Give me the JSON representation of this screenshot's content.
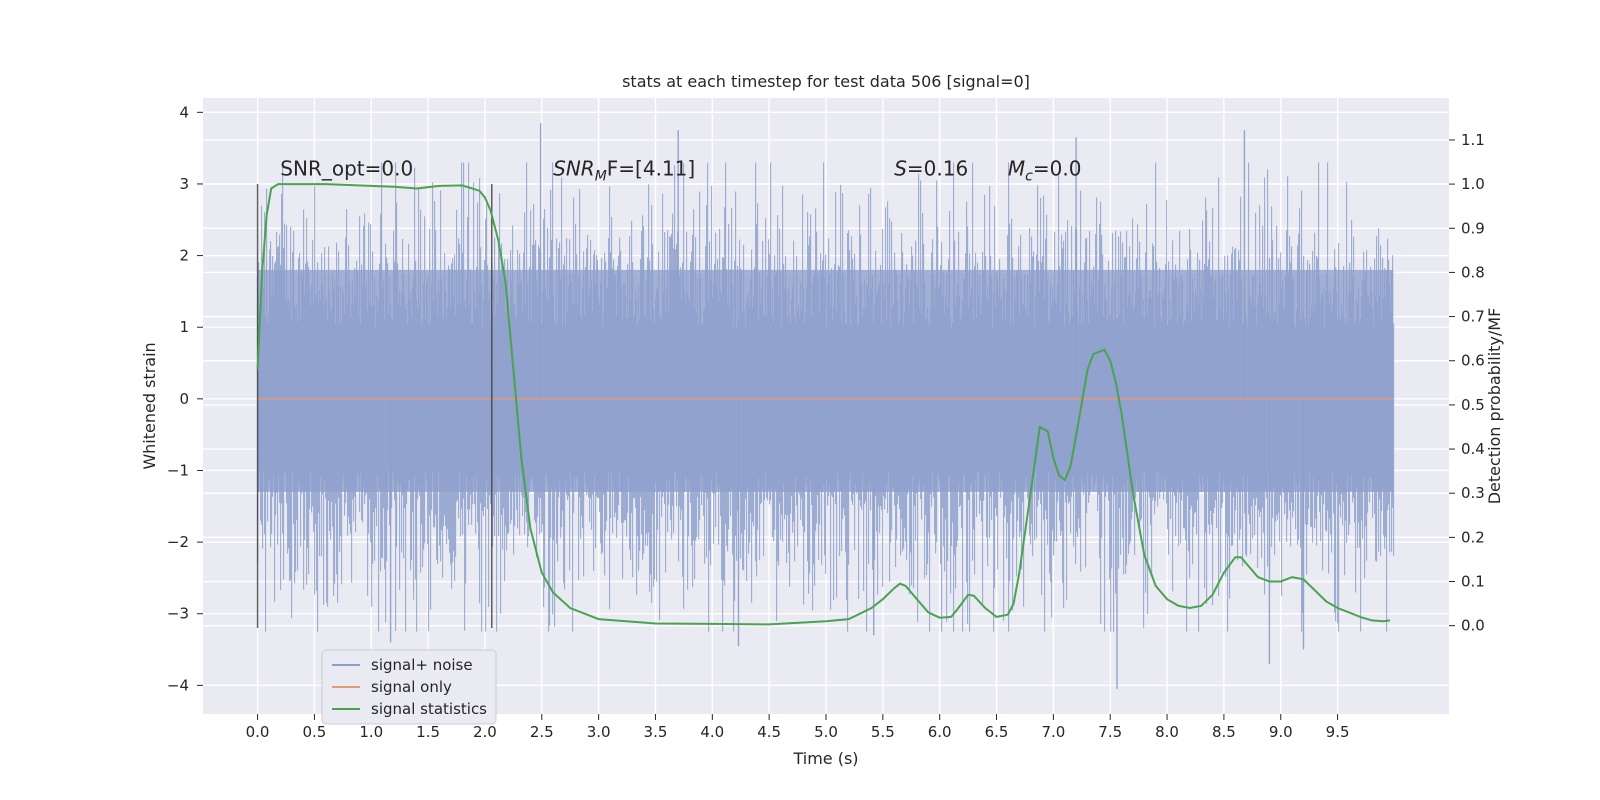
{
  "chart_data": {
    "type": "line",
    "title": "stats at each timestep for test data 506 [signal=0]",
    "xlabel": "Time (s)",
    "ylabel_left": "Whitened strain",
    "ylabel_right": "Detection probability/MF",
    "xlim": [
      -0.48,
      10.48
    ],
    "ylim_left": [
      -4.4,
      4.2
    ],
    "ylim_right": [
      -0.2,
      1.195
    ],
    "x_ticks": [
      "0.0",
      "0.5",
      "1.0",
      "1.5",
      "2.0",
      "2.5",
      "3.0",
      "3.5",
      "4.0",
      "4.5",
      "5.0",
      "5.5",
      "6.0",
      "6.5",
      "7.0",
      "7.5",
      "8.0",
      "8.5",
      "9.0",
      "9.5"
    ],
    "y_ticks_left": [
      "4",
      "3",
      "2",
      "1",
      "0",
      "−1",
      "−2",
      "−3",
      "−4"
    ],
    "y_ticks_right": [
      "1.1",
      "1.0",
      "0.9",
      "0.8",
      "0.7",
      "0.6",
      "0.5",
      "0.4",
      "0.3",
      "0.2",
      "0.1",
      "0.0"
    ],
    "grid": true,
    "legend_position": "lower-left",
    "annotations": [
      {
        "prefix": "SNR_opt",
        "suffix": "=0.0",
        "italic_prefix": false,
        "sub": "",
        "x": 0.2,
        "y_right": 1.02
      },
      {
        "prefix": "SNR",
        "sub": "M",
        "suffix": "F=[4.11]",
        "italic_prefix": true,
        "x": 2.6,
        "y_right": 1.02
      },
      {
        "prefix": "S",
        "sub": "",
        "suffix": "=0.16",
        "italic_prefix": true,
        "x": 5.6,
        "y_right": 1.02
      },
      {
        "prefix": "M",
        "sub": "c",
        "suffix": "=0.0",
        "italic_prefix": true,
        "x": 6.6,
        "y_right": 1.02
      }
    ],
    "vertical_markers": {
      "x": [
        0.0,
        2.06
      ],
      "y_range": [
        -3.2,
        3.0
      ]
    },
    "series": [
      {
        "name": "signal+ noise",
        "color": "#8da0cb",
        "axis": "left",
        "kind": "noise",
        "x_range": [
          0.0,
          9.99
        ],
        "core_band": [
          -1.3,
          1.8
        ],
        "envelope": [
          -3.25,
          3.3
        ],
        "extreme_spikes": [
          {
            "x": 2.49,
            "y": 3.85
          },
          {
            "x": 3.7,
            "y": 3.75
          },
          {
            "x": 7.2,
            "y": 3.65
          },
          {
            "x": 8.68,
            "y": 3.75
          },
          {
            "x": 7.56,
            "y": -4.05
          },
          {
            "x": 4.23,
            "y": -3.45
          },
          {
            "x": 1.17,
            "y": -3.4
          },
          {
            "x": 8.9,
            "y": -3.7
          },
          {
            "x": 9.2,
            "y": -3.5
          },
          {
            "x": 5.42,
            "y": -3.3
          }
        ]
      },
      {
        "name": "signal only",
        "color": "#e99675",
        "axis": "left",
        "kind": "flat",
        "x": [
          0.0,
          9.99
        ],
        "y": [
          0.0,
          0.0
        ]
      },
      {
        "name": "signal statistics",
        "color": "#4aa350",
        "axis": "right",
        "kind": "line",
        "x": [
          0.0,
          0.04,
          0.08,
          0.12,
          0.18,
          0.25,
          0.4,
          0.6,
          0.8,
          1.0,
          1.2,
          1.4,
          1.6,
          1.8,
          1.95,
          2.0,
          2.05,
          2.12,
          2.18,
          2.25,
          2.32,
          2.4,
          2.5,
          2.6,
          2.75,
          3.0,
          3.5,
          4.0,
          4.5,
          5.0,
          5.2,
          5.4,
          5.5,
          5.6,
          5.65,
          5.7,
          5.8,
          5.9,
          6.0,
          6.1,
          6.15,
          6.25,
          6.3,
          6.4,
          6.5,
          6.6,
          6.65,
          6.7,
          6.8,
          6.88,
          6.95,
          7.0,
          7.05,
          7.1,
          7.15,
          7.2,
          7.3,
          7.35,
          7.45,
          7.5,
          7.55,
          7.6,
          7.7,
          7.8,
          7.9,
          8.0,
          8.1,
          8.2,
          8.3,
          8.4,
          8.5,
          8.6,
          8.65,
          8.7,
          8.8,
          8.9,
          9.0,
          9.05,
          9.1,
          9.2,
          9.3,
          9.4,
          9.5,
          9.6,
          9.7,
          9.8,
          9.9,
          9.96
        ],
        "y": [
          0.58,
          0.8,
          0.93,
          0.99,
          1.0,
          1.0,
          1.0,
          1.0,
          0.998,
          0.996,
          0.994,
          0.99,
          0.996,
          0.997,
          0.985,
          0.97,
          0.94,
          0.87,
          0.78,
          0.58,
          0.38,
          0.22,
          0.12,
          0.075,
          0.04,
          0.015,
          0.005,
          0.004,
          0.003,
          0.01,
          0.015,
          0.04,
          0.06,
          0.085,
          0.095,
          0.09,
          0.06,
          0.03,
          0.018,
          0.02,
          0.035,
          0.07,
          0.068,
          0.04,
          0.02,
          0.025,
          0.05,
          0.12,
          0.3,
          0.45,
          0.44,
          0.38,
          0.34,
          0.33,
          0.36,
          0.43,
          0.58,
          0.615,
          0.625,
          0.6,
          0.55,
          0.48,
          0.3,
          0.16,
          0.09,
          0.06,
          0.045,
          0.04,
          0.045,
          0.07,
          0.12,
          0.155,
          0.155,
          0.14,
          0.11,
          0.1,
          0.1,
          0.105,
          0.11,
          0.105,
          0.08,
          0.055,
          0.04,
          0.03,
          0.02,
          0.012,
          0.01,
          0.012
        ]
      }
    ]
  }
}
